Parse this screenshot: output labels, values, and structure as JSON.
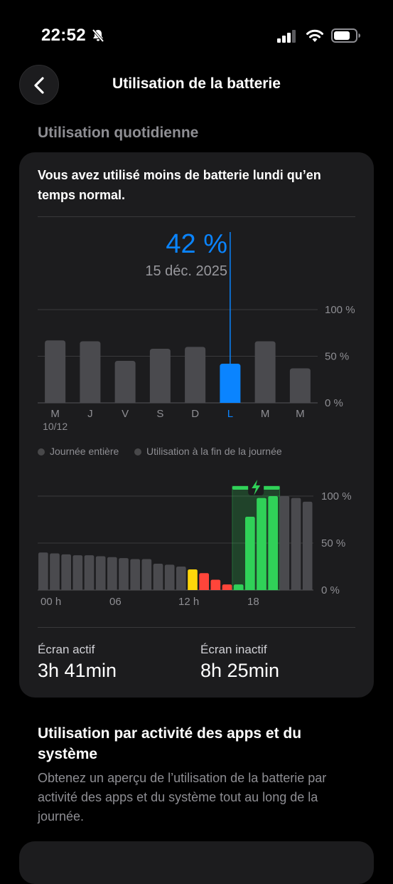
{
  "status": {
    "time": "22:52"
  },
  "nav": {
    "title": "Utilisation de la batterie"
  },
  "section": {
    "title": "Utilisation quotidienne"
  },
  "card": {
    "message": "Vous avez utilisé moins de batterie lundi qu’en temps normal.",
    "selected": {
      "percent": "42 %",
      "date": "15 déc. 2025"
    },
    "legend": {
      "full_day": "Journée entière",
      "end_of_day": "Utilisation à la fin de la journée"
    },
    "stats": {
      "screen_on_label": "Écran actif",
      "screen_on_value": "3h 41min",
      "screen_off_label": "Écran inactif",
      "screen_off_value": "8h 25min"
    }
  },
  "info": {
    "title": "Utilisation par activité des apps et du système",
    "desc": "Obtenez un aperçu de l’utilisation de la batterie par activité des apps et du système tout au long de la journée."
  },
  "chart_data": [
    {
      "type": "bar",
      "categories": [
        "M",
        "J",
        "V",
        "S",
        "D",
        "L",
        "M",
        "M"
      ],
      "sublabels": [
        "10/12",
        "",
        "",
        "",
        "",
        "",
        "",
        ""
      ],
      "values": [
        67,
        66,
        45,
        58,
        60,
        42,
        66,
        37
      ],
      "selected_index": 5,
      "ylim": [
        0,
        100
      ],
      "yticks": [
        "100 %",
        "50 %",
        "0 %"
      ],
      "colors": {
        "bar": "#4a4a4e",
        "selected": "#0a84ff"
      }
    },
    {
      "type": "bar",
      "x_ticks": [
        "00 h",
        "06",
        "12 h",
        "18"
      ],
      "values": [
        40,
        39,
        38,
        37,
        37,
        36,
        35,
        34,
        33,
        33,
        28,
        27,
        25,
        22,
        18,
        11,
        6,
        6,
        78,
        98,
        100,
        100,
        98,
        94
      ],
      "bar_colors": [
        "gray",
        "gray",
        "gray",
        "gray",
        "gray",
        "gray",
        "gray",
        "gray",
        "gray",
        "gray",
        "gray",
        "gray",
        "gray",
        "yellow",
        "red",
        "red",
        "red",
        "green",
        "green",
        "green",
        "green",
        "gray",
        "gray",
        "gray"
      ],
      "charging_range": [
        17,
        20
      ],
      "ylim": [
        0,
        100
      ],
      "yticks": [
        "100 %",
        "50 %",
        "0 %"
      ],
      "colors": {
        "gray": "#4a4a4e",
        "yellow": "#ffd60a",
        "red": "#ff453a",
        "green": "#30d158"
      }
    }
  ]
}
